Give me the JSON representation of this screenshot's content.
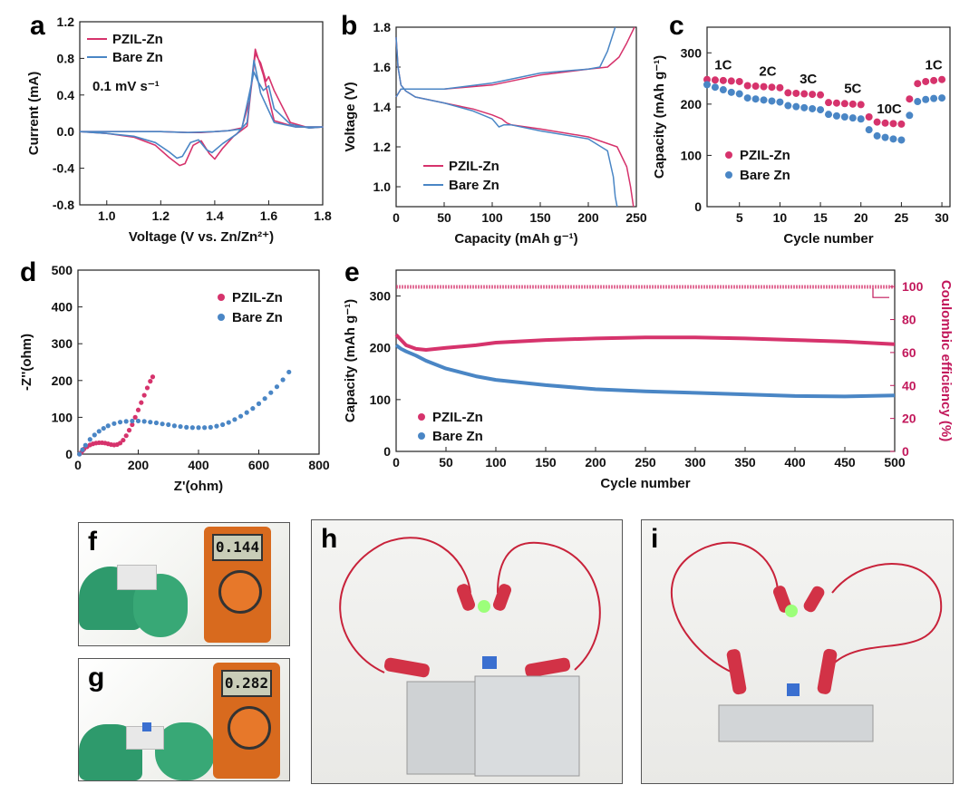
{
  "colors": {
    "pzil": "#d6336c",
    "bare": "#4a86c5",
    "ce": "#d6336c"
  },
  "photos": {
    "f": {
      "letter": "f",
      "display": "0.144"
    },
    "g": {
      "letter": "g",
      "display": "0.282"
    },
    "h": {
      "letter": "h"
    },
    "i": {
      "letter": "i"
    }
  },
  "chart_data": [
    {
      "panel": "a",
      "type": "line",
      "xlabel": "Voltage (V vs. Zn/Zn²⁺)",
      "ylabel": "Current (mA)",
      "xlim": [
        0.9,
        1.8
      ],
      "ylim": [
        -0.8,
        1.2
      ],
      "xticks": [
        1.0,
        1.2,
        1.4,
        1.6,
        1.8
      ],
      "yticks": [
        -0.8,
        -0.4,
        0.0,
        0.4,
        0.8,
        1.2
      ],
      "xtick_labels": [
        "1.0",
        "1.2",
        "1.4",
        "1.6",
        "1.8"
      ],
      "ytick_labels": [
        "-0.8",
        "-0.4",
        "0.0",
        "0.4",
        "0.8",
        "1.2"
      ],
      "annotation": "0.1 mV s⁻¹",
      "legend": "top-left",
      "series": [
        {
          "name": "PZIL-Zn",
          "color": "#d6336c",
          "x": [
            0.9,
            1.0,
            1.1,
            1.18,
            1.23,
            1.27,
            1.29,
            1.32,
            1.35,
            1.38,
            1.4,
            1.43,
            1.47,
            1.52,
            1.55,
            1.58,
            1.62,
            1.7,
            1.8,
            1.75,
            1.68,
            1.62,
            1.6,
            1.59,
            1.57,
            1.55,
            1.53,
            1.5,
            1.45,
            1.4,
            1.35,
            1.3,
            1.2,
            1.1,
            1.0,
            0.9
          ],
          "y": [
            0.0,
            -0.02,
            -0.06,
            -0.15,
            -0.28,
            -0.37,
            -0.35,
            -0.15,
            -0.1,
            -0.24,
            -0.3,
            -0.18,
            -0.05,
            0.06,
            0.9,
            0.62,
            0.12,
            0.05,
            0.05,
            0.04,
            0.1,
            0.45,
            0.6,
            0.55,
            0.75,
            0.85,
            0.35,
            0.04,
            0.01,
            0.0,
            -0.01,
            -0.01,
            0.0,
            0.0,
            0.0,
            0.0
          ]
        },
        {
          "name": "Bare Zn",
          "color": "#4a86c5",
          "x": [
            0.9,
            1.0,
            1.1,
            1.18,
            1.23,
            1.26,
            1.28,
            1.31,
            1.34,
            1.37,
            1.39,
            1.43,
            1.48,
            1.52,
            1.545,
            1.57,
            1.62,
            1.7,
            1.8,
            1.75,
            1.68,
            1.62,
            1.6,
            1.58,
            1.56,
            1.545,
            1.52,
            1.5,
            1.45,
            1.4,
            1.3,
            1.2,
            1.1,
            1.0,
            0.9
          ],
          "y": [
            0.0,
            -0.02,
            -0.05,
            -0.12,
            -0.22,
            -0.29,
            -0.27,
            -0.12,
            -0.09,
            -0.2,
            -0.23,
            -0.13,
            -0.03,
            0.1,
            0.78,
            0.42,
            0.1,
            0.05,
            0.05,
            0.04,
            0.08,
            0.25,
            0.5,
            0.45,
            0.55,
            0.65,
            0.3,
            0.03,
            0.01,
            0.0,
            -0.01,
            0.0,
            0.0,
            0.0,
            0.0
          ]
        }
      ]
    },
    {
      "panel": "b",
      "type": "line",
      "xlabel": "Capacity (mAh g⁻¹)",
      "ylabel": "Voltage (V)",
      "xlim": [
        0,
        250
      ],
      "ylim": [
        0.9,
        1.8
      ],
      "xticks": [
        0,
        50,
        100,
        150,
        200,
        250
      ],
      "yticks": [
        1.0,
        1.2,
        1.4,
        1.6,
        1.8
      ],
      "xtick_labels": [
        "0",
        "50",
        "100",
        "150",
        "200",
        "250"
      ],
      "ytick_labels": [
        "1.0",
        "1.2",
        "1.4",
        "1.6",
        "1.8"
      ],
      "legend": "bottom-left",
      "series": [
        {
          "name": "PZIL-Zn",
          "color": "#d6336c",
          "charge_x": [
            0,
            5,
            20,
            50,
            100,
            150,
            200,
            220,
            232,
            240,
            248
          ],
          "charge_y": [
            1.45,
            1.49,
            1.49,
            1.49,
            1.51,
            1.56,
            1.59,
            1.6,
            1.65,
            1.72,
            1.8
          ],
          "discharge_x": [
            0,
            2,
            5,
            10,
            20,
            50,
            80,
            100,
            110,
            115,
            120,
            150,
            200,
            230,
            240,
            244,
            247
          ],
          "discharge_y": [
            1.75,
            1.6,
            1.51,
            1.48,
            1.45,
            1.42,
            1.39,
            1.36,
            1.34,
            1.32,
            1.31,
            1.29,
            1.25,
            1.2,
            1.1,
            1.0,
            0.9
          ]
        },
        {
          "name": "Bare Zn",
          "color": "#4a86c5",
          "charge_x": [
            0,
            5,
            20,
            50,
            100,
            150,
            200,
            212,
            220,
            228
          ],
          "charge_y": [
            1.45,
            1.49,
            1.49,
            1.49,
            1.52,
            1.57,
            1.59,
            1.6,
            1.68,
            1.8
          ],
          "discharge_x": [
            0,
            2,
            5,
            10,
            20,
            50,
            80,
            100,
            107,
            112,
            120,
            150,
            200,
            220,
            226,
            228,
            230
          ],
          "discharge_y": [
            1.75,
            1.6,
            1.51,
            1.48,
            1.45,
            1.42,
            1.38,
            1.34,
            1.3,
            1.31,
            1.31,
            1.28,
            1.24,
            1.18,
            1.05,
            0.95,
            0.9
          ]
        }
      ]
    },
    {
      "panel": "c",
      "type": "scatter",
      "xlabel": "Cycle number",
      "ylabel": "Capacity (mAh g⁻¹)",
      "xlim": [
        1,
        31
      ],
      "ylim": [
        0,
        350
      ],
      "xticks": [
        5,
        10,
        15,
        20,
        25,
        30
      ],
      "yticks": [
        0,
        100,
        200,
        300
      ],
      "xtick_labels": [
        "5",
        "10",
        "15",
        "20",
        "25",
        "30"
      ],
      "ytick_labels": [
        "0",
        "100",
        "200",
        "300"
      ],
      "rate_labels": [
        {
          "text": "1C",
          "x": 3,
          "y": 268
        },
        {
          "text": "2C",
          "x": 8.5,
          "y": 255
        },
        {
          "text": "3C",
          "x": 13.5,
          "y": 240
        },
        {
          "text": "5C",
          "x": 19,
          "y": 222
        },
        {
          "text": "10C",
          "x": 23.5,
          "y": 182
        },
        {
          "text": "1C",
          "x": 29,
          "y": 268
        }
      ],
      "legend": "bottom-left",
      "series": [
        {
          "name": "PZIL-Zn",
          "color": "#d6336c",
          "x": [
            1,
            2,
            3,
            4,
            5,
            6,
            7,
            8,
            9,
            10,
            11,
            12,
            13,
            14,
            15,
            16,
            17,
            18,
            19,
            20,
            21,
            22,
            23,
            24,
            25,
            26,
            27,
            28,
            29,
            30
          ],
          "y": [
            248,
            247,
            246,
            245,
            244,
            236,
            235,
            234,
            233,
            232,
            222,
            221,
            220,
            219,
            218,
            203,
            202,
            201,
            200,
            199,
            175,
            165,
            163,
            162,
            161,
            210,
            240,
            244,
            246,
            248
          ]
        },
        {
          "name": "Bare Zn",
          "color": "#4a86c5",
          "x": [
            1,
            2,
            3,
            4,
            5,
            6,
            7,
            8,
            9,
            10,
            11,
            12,
            13,
            14,
            15,
            16,
            17,
            18,
            19,
            20,
            21,
            22,
            23,
            24,
            25,
            26,
            27,
            28,
            29,
            30
          ],
          "y": [
            238,
            233,
            228,
            223,
            220,
            212,
            210,
            208,
            206,
            204,
            197,
            195,
            193,
            191,
            189,
            180,
            177,
            175,
            173,
            171,
            150,
            138,
            135,
            132,
            130,
            178,
            205,
            209,
            211,
            212
          ]
        }
      ]
    },
    {
      "panel": "d",
      "type": "scatter",
      "xlabel": "Z'(ohm)",
      "ylabel": "-Z''(ohm)",
      "xlim": [
        0,
        800
      ],
      "ylim": [
        0,
        500
      ],
      "xticks": [
        0,
        200,
        400,
        600,
        800
      ],
      "yticks": [
        0,
        100,
        200,
        300,
        400,
        500
      ],
      "xtick_labels": [
        "0",
        "200",
        "400",
        "600",
        "800"
      ],
      "ytick_labels": [
        "0",
        "100",
        "200",
        "300",
        "400",
        "500"
      ],
      "legend": "top-right",
      "series": [
        {
          "name": "PZIL-Zn",
          "color": "#d6336c",
          "x": [
            5,
            10,
            15,
            20,
            30,
            40,
            50,
            60,
            70,
            80,
            90,
            100,
            110,
            120,
            130,
            140,
            150,
            160,
            170,
            180,
            190,
            200,
            210,
            220,
            230,
            240,
            248
          ],
          "y": [
            0,
            4,
            9,
            14,
            20,
            25,
            28,
            30,
            31,
            31,
            30,
            28,
            26,
            25,
            26,
            30,
            38,
            50,
            65,
            80,
            100,
            120,
            140,
            160,
            180,
            198,
            210
          ]
        },
        {
          "name": "Bare Zn",
          "color": "#4a86c5",
          "x": [
            5,
            15,
            25,
            40,
            55,
            70,
            85,
            100,
            120,
            140,
            160,
            180,
            200,
            220,
            240,
            260,
            280,
            300,
            320,
            340,
            360,
            380,
            400,
            420,
            440,
            460,
            480,
            500,
            520,
            540,
            560,
            580,
            600,
            620,
            640,
            660,
            680,
            700
          ],
          "y": [
            0,
            12,
            24,
            40,
            52,
            62,
            70,
            77,
            83,
            87,
            89,
            90,
            90,
            89,
            87,
            85,
            82,
            80,
            77,
            75,
            73,
            72,
            72,
            72,
            73,
            76,
            80,
            86,
            94,
            103,
            113,
            124,
            137,
            151,
            167,
            183,
            202,
            223
          ]
        }
      ]
    },
    {
      "panel": "e",
      "type": "line",
      "xlabel": "Cycle number",
      "ylabel": "Capacity (mAh g⁻¹)",
      "y2label": "Coulombic efficiency (%)",
      "xlim": [
        0,
        500
      ],
      "ylim": [
        0,
        350
      ],
      "y2lim": [
        0,
        110
      ],
      "xticks": [
        0,
        50,
        100,
        150,
        200,
        250,
        300,
        350,
        400,
        450,
        500
      ],
      "yticks": [
        0,
        100,
        200,
        300
      ],
      "y2ticks": [
        0,
        20,
        40,
        60,
        80,
        100
      ],
      "xtick_labels": [
        "0",
        "50",
        "100",
        "150",
        "200",
        "250",
        "300",
        "350",
        "400",
        "450",
        "500"
      ],
      "ytick_labels": [
        "0",
        "100",
        "200",
        "300"
      ],
      "y2tick_labels": [
        "0",
        "20",
        "40",
        "60",
        "80",
        "100"
      ],
      "legend": "bottom-left",
      "series": [
        {
          "name": "PZIL-Zn",
          "color": "#d6336c",
          "x": [
            0,
            5,
            10,
            20,
            30,
            50,
            80,
            100,
            150,
            200,
            250,
            300,
            350,
            400,
            450,
            500
          ],
          "y": [
            225,
            215,
            205,
            198,
            196,
            200,
            205,
            210,
            215,
            218,
            220,
            220,
            218,
            215,
            212,
            207
          ]
        },
        {
          "name": "Bare Zn",
          "color": "#4a86c5",
          "x": [
            0,
            5,
            10,
            20,
            30,
            50,
            80,
            100,
            150,
            200,
            250,
            300,
            350,
            400,
            450,
            500
          ],
          "y": [
            205,
            198,
            193,
            185,
            175,
            160,
            145,
            138,
            128,
            120,
            116,
            113,
            110,
            107,
            106,
            108
          ]
        },
        {
          "name": "Coulombic efficiency",
          "color": "#d6336c",
          "x": [
            0,
            50,
            100,
            150,
            200,
            250,
            300,
            350,
            400,
            450,
            500
          ],
          "y": [
            99.8,
            99.8,
            99.8,
            99.8,
            99.8,
            99.8,
            99.8,
            99.8,
            99.8,
            99.8,
            99.8
          ]
        }
      ]
    }
  ]
}
